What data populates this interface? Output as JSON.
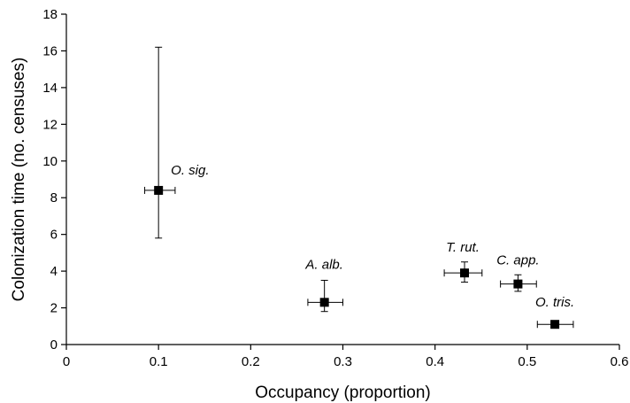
{
  "chart_data": {
    "type": "scatter",
    "title": "",
    "xlabel": "Occupancy (proportion)",
    "ylabel": "Colonization time (no. censuses)",
    "xlim": [
      0,
      0.6
    ],
    "ylim": [
      0,
      18
    ],
    "xticks": [
      0,
      0.1,
      0.2,
      0.3,
      0.4,
      0.5,
      0.6
    ],
    "xtick_labels": [
      "0",
      "0.1",
      "0.2",
      "0.3",
      "0.4",
      "0.5",
      "0.6"
    ],
    "yticks": [
      0,
      2,
      4,
      6,
      8,
      10,
      12,
      14,
      16,
      18
    ],
    "ytick_labels": [
      "0",
      "2",
      "4",
      "6",
      "8",
      "10",
      "12",
      "14",
      "16",
      "18"
    ],
    "grid": false,
    "marker": "square",
    "marker_color": "#000000",
    "points": [
      {
        "label": "O. sig.",
        "x": 0.1,
        "y": 8.4,
        "x_err": [
          0.085,
          0.118
        ],
        "y_err": [
          5.8,
          16.2
        ]
      },
      {
        "label": "A. alb.",
        "x": 0.28,
        "y": 2.3,
        "x_err": [
          0.262,
          0.3
        ],
        "y_err": [
          1.8,
          3.5
        ]
      },
      {
        "label": "T. rut.",
        "x": 0.432,
        "y": 3.9,
        "x_err": [
          0.41,
          0.451
        ],
        "y_err": [
          3.4,
          4.5
        ]
      },
      {
        "label": "C. app.",
        "x": 0.49,
        "y": 3.3,
        "x_err": [
          0.471,
          0.51
        ],
        "y_err": [
          2.9,
          3.8
        ]
      },
      {
        "label": "O. tris.",
        "x": 0.53,
        "y": 1.1,
        "x_err": [
          0.511,
          0.55
        ],
        "y_err": [
          1.0,
          1.2
        ]
      }
    ]
  }
}
